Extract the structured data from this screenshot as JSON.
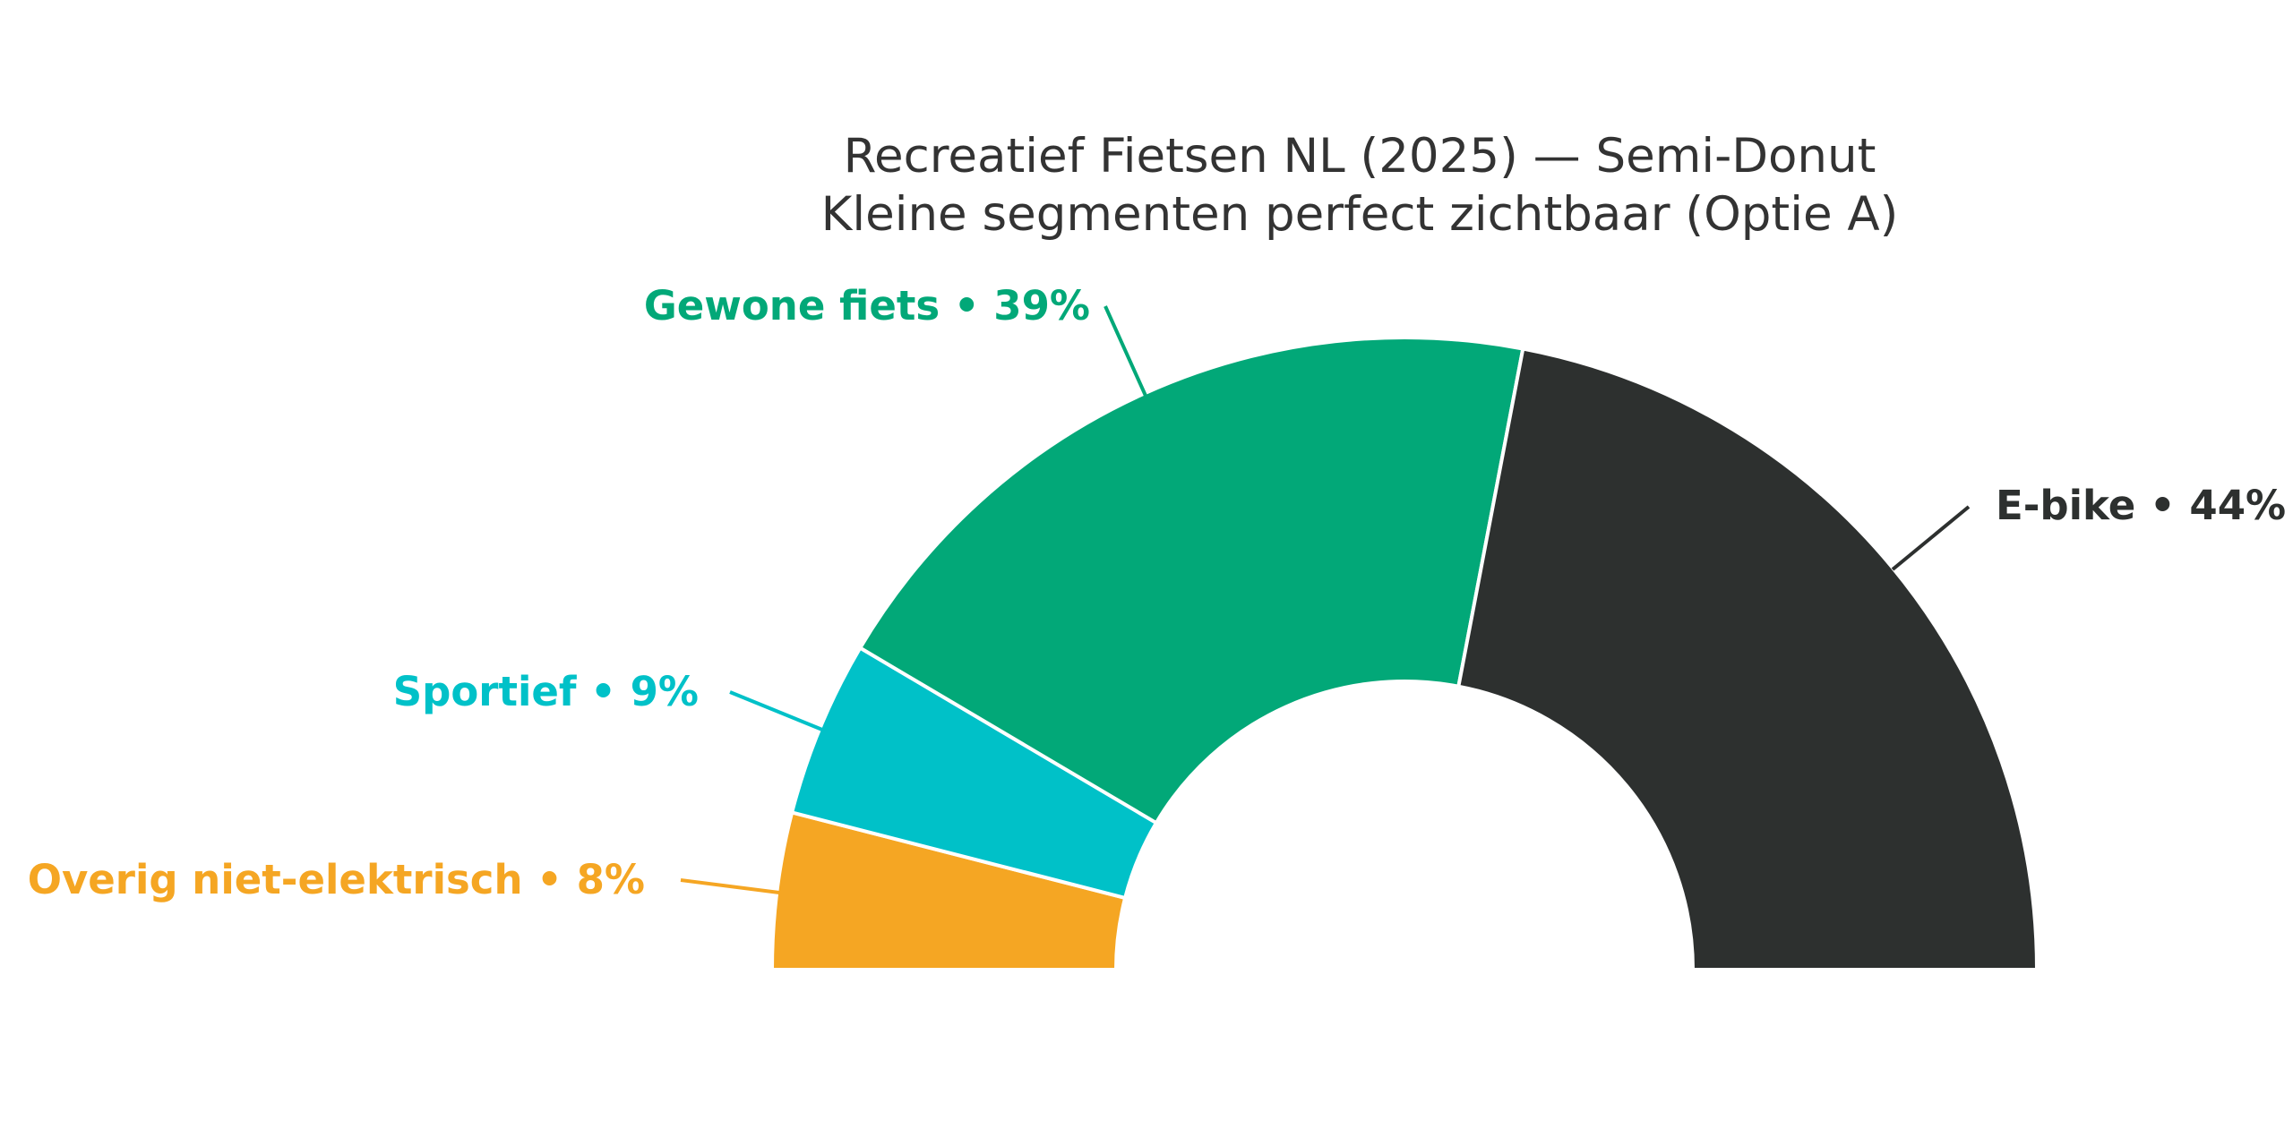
{
  "chart_data": {
    "type": "pie",
    "variant": "semi-donut",
    "title": "Recreatief Fietsen NL (2025) — Semi-Donut",
    "subtitle": "Kleine segmenten perfect zichtbaar (Optie A)",
    "slices": [
      {
        "label": "Overig niet-elektrisch • 8%",
        "value": 8,
        "color": "#F5A623"
      },
      {
        "label": "Sportief • 9%",
        "value": 9,
        "color": "#00C1C8"
      },
      {
        "label": "Gewone fiets • 39%",
        "value": 39,
        "color": "#02A878"
      },
      {
        "label": "E-bike • 44%",
        "value": 44,
        "color": "#2D302F"
      }
    ]
  }
}
